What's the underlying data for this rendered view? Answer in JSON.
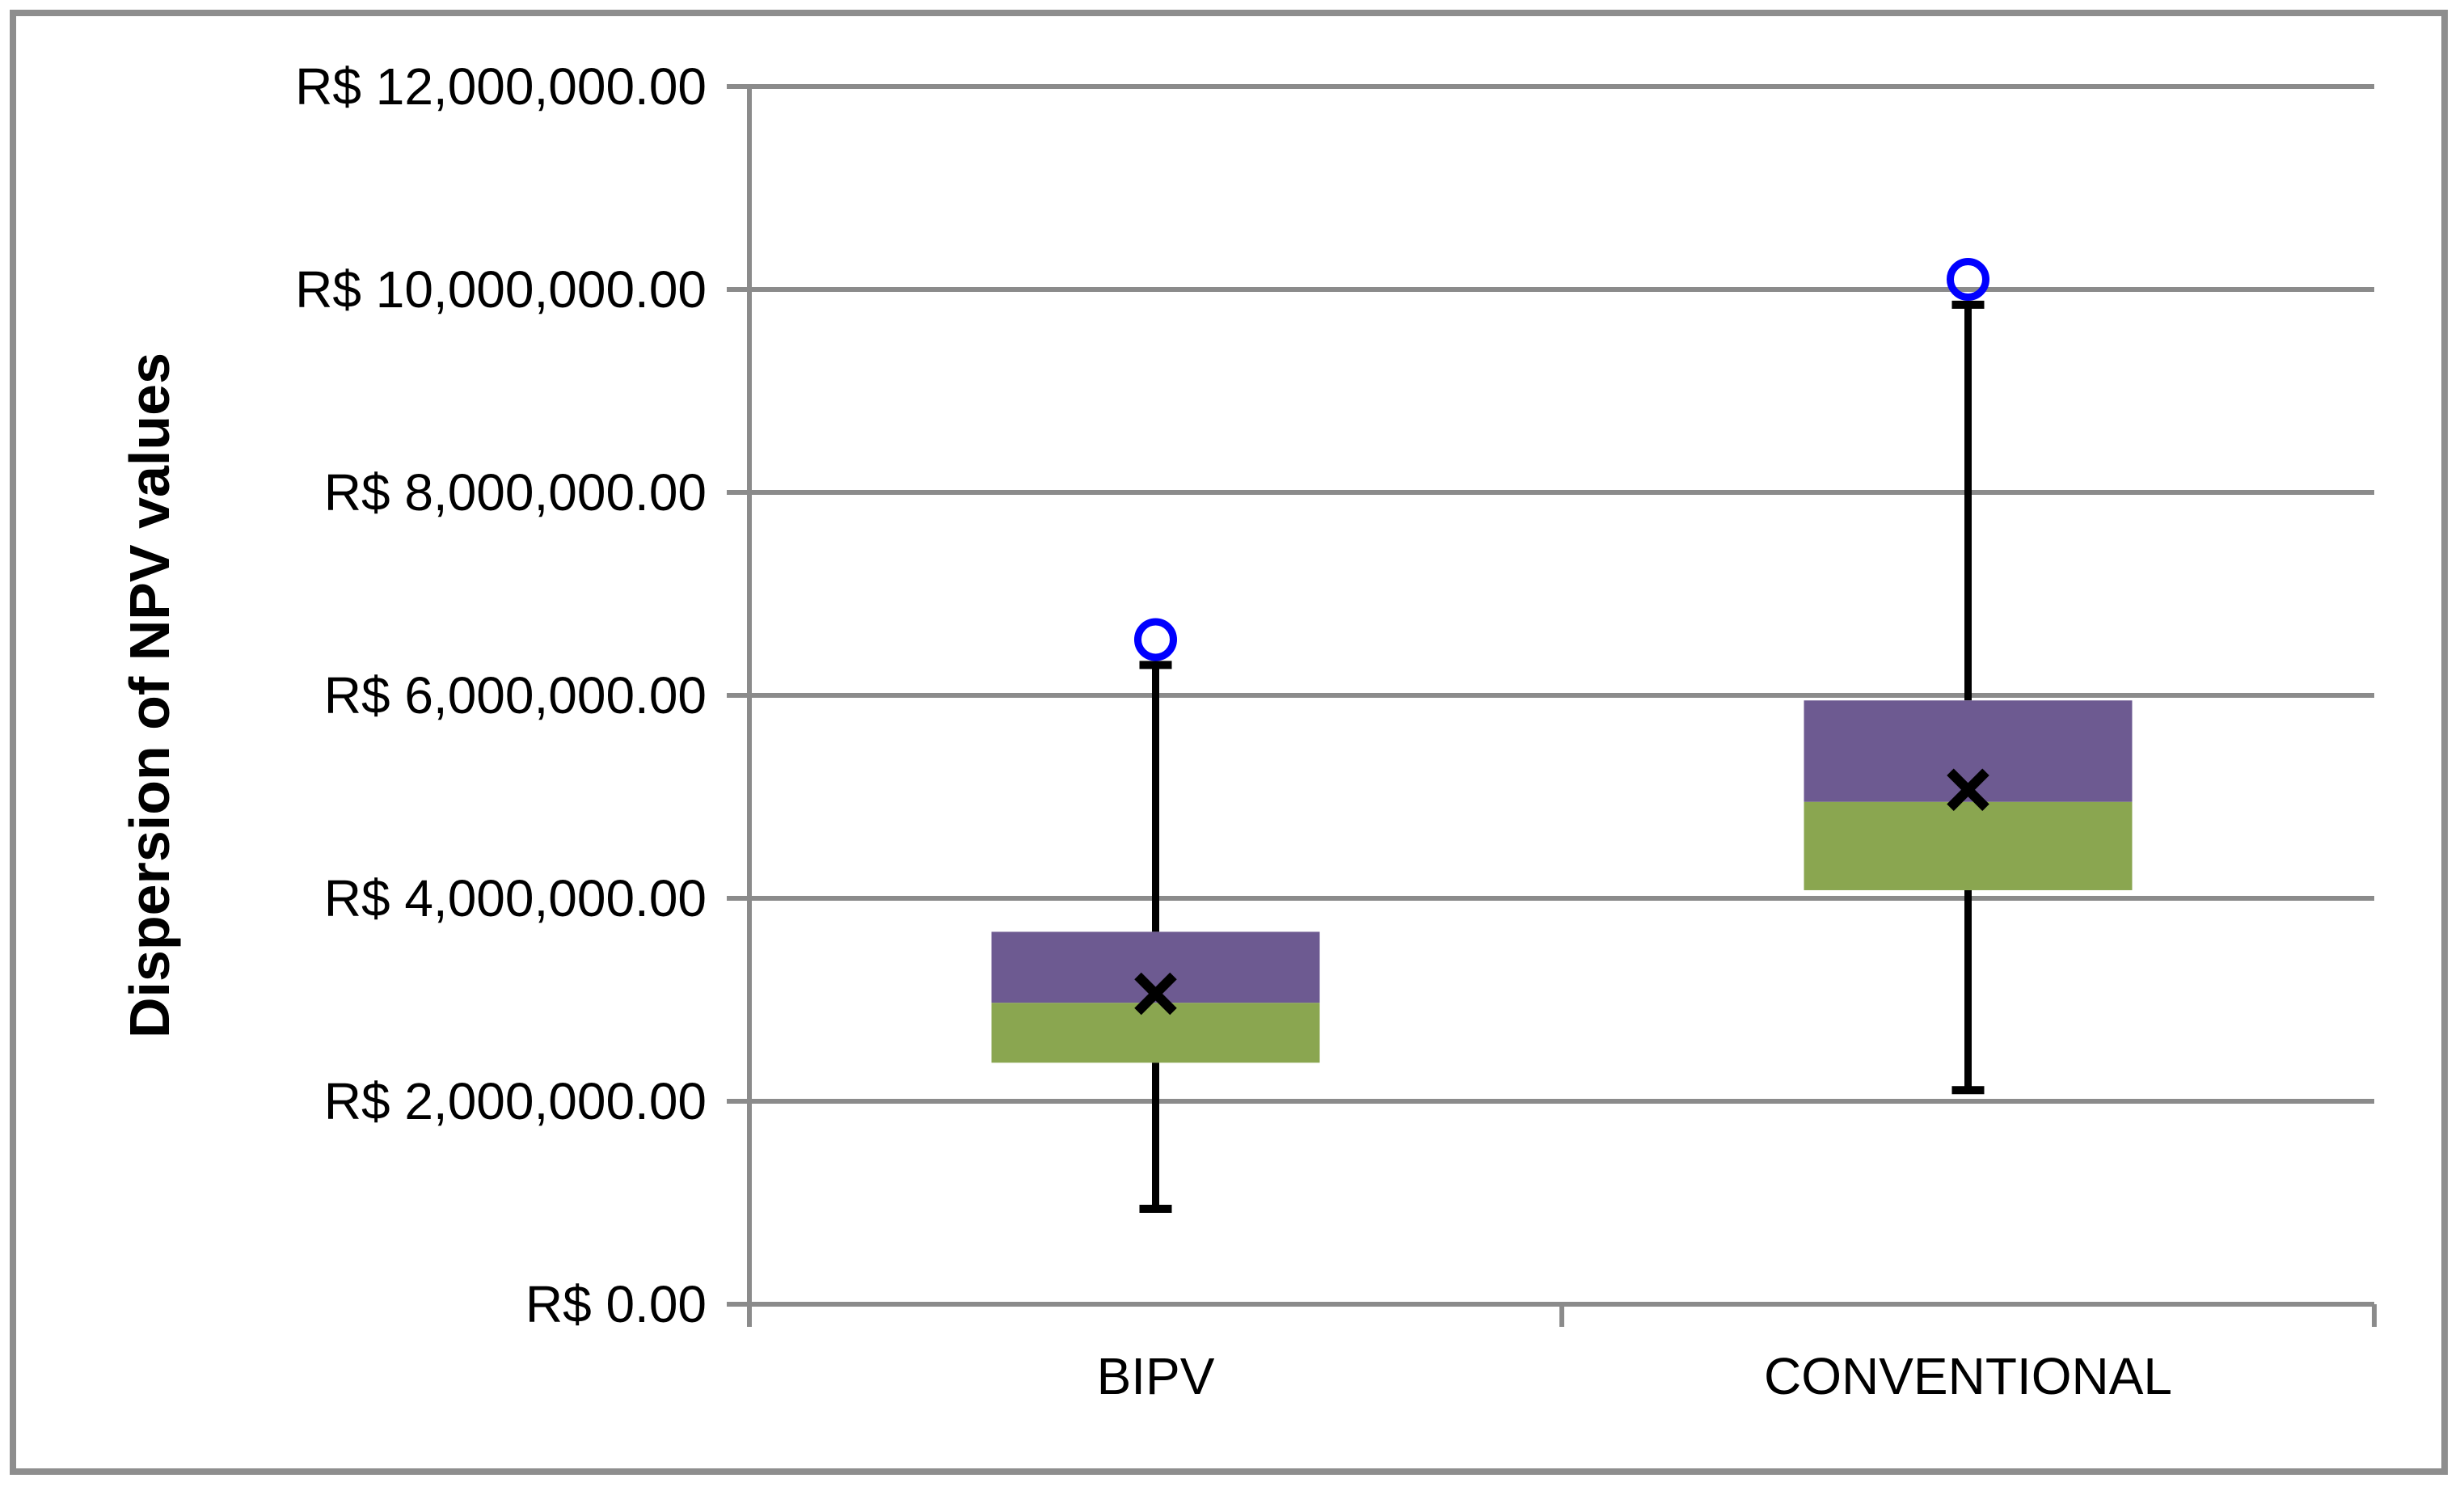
{
  "figure": {
    "background": "#ffffff",
    "border_color": "#8e8e8e"
  },
  "chart_data": {
    "type": "box",
    "title": "",
    "xlabel": "",
    "ylabel": "Dispersion of NPV values",
    "categories": [
      "BIPV",
      "CONVENTIONAL"
    ],
    "series": [
      {
        "name": "BIPV",
        "whisker_low": 940000,
        "q1": 2380000,
        "median": 2970000,
        "q3": 3670000,
        "whisker_high": 6300000,
        "mean": 3060000,
        "outliers": [
          6550000
        ]
      },
      {
        "name": "CONVENTIONAL",
        "whisker_low": 2110000,
        "q1": 4080000,
        "median": 4950000,
        "q3": 5950000,
        "whisker_high": 9850000,
        "mean": 5070000,
        "outliers": [
          10100000
        ]
      }
    ],
    "y_axis": {
      "min": 0,
      "max": 12000000,
      "step": 2000000,
      "currency_prefix": "R$",
      "tick_labels_top_to_bottom": [
        "R$ 12,000,000.00",
        "R$ 10,000,000.00",
        "R$ 8,000,000.00",
        "R$ 6,000,000.00",
        "R$ 4,000,000.00",
        "R$ 2,000,000.00",
        "R$ 0.00"
      ]
    },
    "grid": true,
    "legend": false,
    "layout_hints": {
      "legend_position": "none",
      "gridlines": "horizontal-major"
    },
    "colors": {
      "box_upper_quartile": "#6D5A91",
      "box_lower_quartile": "#8AA650",
      "whisker": "#000000",
      "mean_marker": "#000000",
      "outlier_marker": "#0000FE",
      "gridline": "#8B8B8B",
      "axis_line": "#8B8B8B",
      "text": "#000000"
    }
  }
}
